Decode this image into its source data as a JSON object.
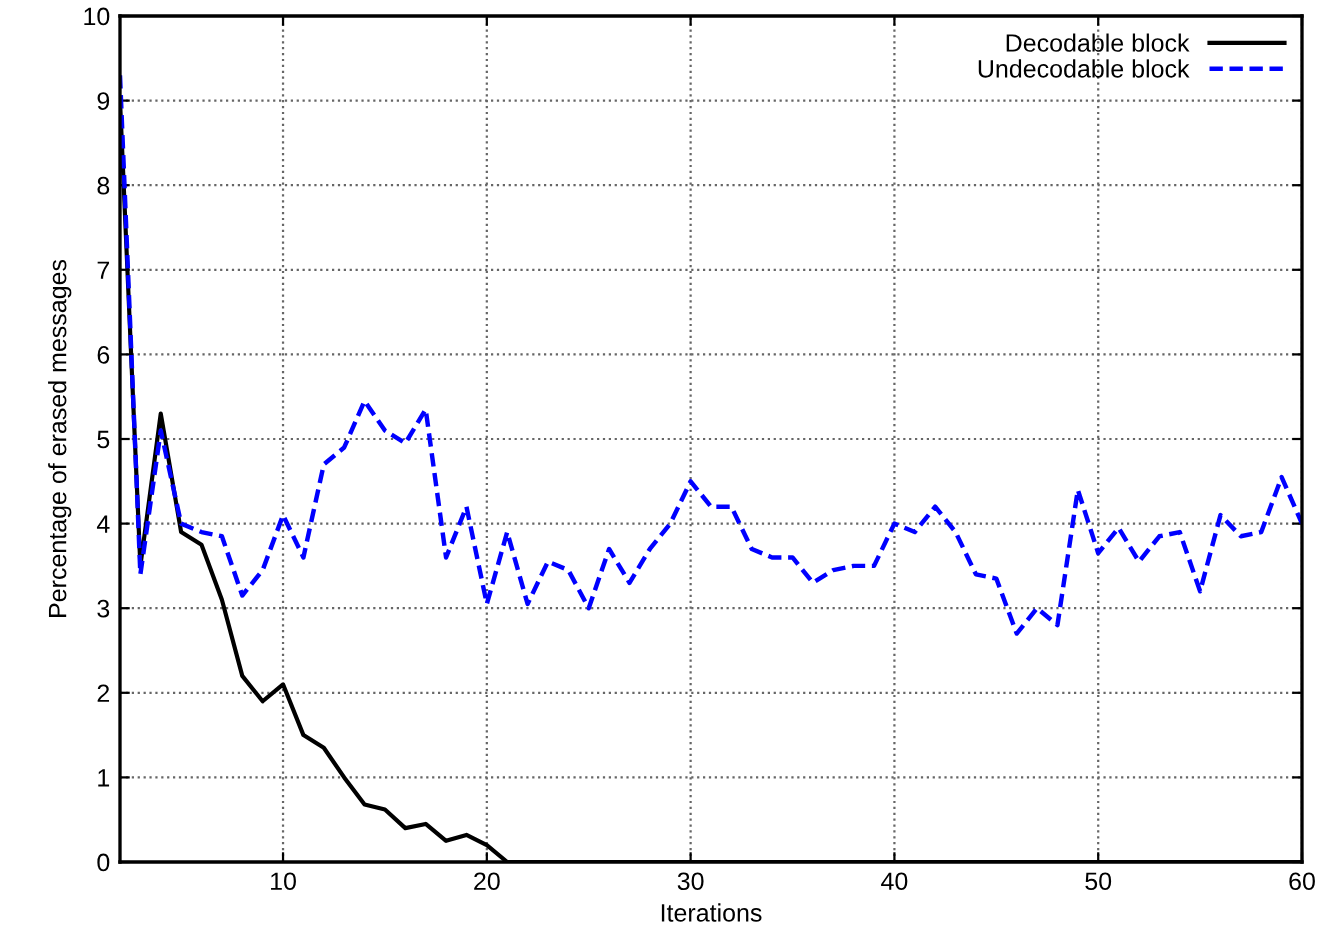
{
  "chart_data": {
    "type": "line",
    "xlabel": "Iterations",
    "ylabel": "Percentage of erased messages",
    "x": [
      2,
      3,
      4,
      5,
      6,
      7,
      8,
      9,
      10,
      11,
      12,
      13,
      14,
      15,
      16,
      17,
      18,
      19,
      20,
      21,
      22,
      23,
      24,
      25,
      26,
      27,
      28,
      29,
      30,
      31,
      32,
      33,
      34,
      35,
      36,
      37,
      38,
      39,
      40,
      41,
      42,
      43,
      44,
      45,
      46,
      47,
      48,
      49,
      50,
      51,
      52,
      53,
      54,
      55,
      56,
      57,
      58,
      59,
      60
    ],
    "series": [
      {
        "name": "Decodable block",
        "color": "#000000",
        "line_style": "solid",
        "values": [
          9.0,
          3.5,
          5.3,
          3.9,
          3.75,
          3.1,
          2.2,
          1.9,
          2.1,
          1.5,
          1.35,
          1.0,
          0.68,
          0.62,
          0.4,
          0.45,
          0.25,
          0.32,
          0.2,
          0,
          0,
          0,
          0,
          0,
          0,
          0,
          0,
          0,
          0,
          0,
          0,
          0,
          0,
          0,
          0,
          0,
          0,
          0,
          0,
          0,
          0,
          0,
          0,
          0,
          0,
          0,
          0,
          0,
          0,
          0,
          0,
          0,
          0,
          0,
          0,
          0,
          0,
          0,
          0
        ]
      },
      {
        "name": "Undecodable block",
        "color": "#0000ff",
        "line_style": "dashed",
        "values": [
          9.3,
          3.4,
          5.1,
          4.0,
          3.9,
          3.85,
          3.15,
          3.45,
          4.1,
          3.6,
          4.7,
          4.9,
          5.45,
          5.1,
          4.95,
          5.35,
          3.6,
          4.2,
          3.05,
          3.9,
          3.05,
          3.55,
          3.45,
          3.0,
          3.7,
          3.3,
          3.7,
          4.0,
          4.5,
          4.2,
          4.2,
          3.7,
          3.6,
          3.6,
          3.3,
          3.45,
          3.5,
          3.5,
          4.0,
          3.9,
          4.2,
          3.9,
          3.4,
          3.35,
          2.7,
          3.0,
          2.8,
          4.4,
          3.65,
          3.95,
          3.55,
          3.85,
          3.9,
          3.2,
          4.1,
          3.85,
          3.9,
          4.55,
          4.0
        ]
      }
    ],
    "xlim": [
      2,
      60
    ],
    "ylim": [
      0,
      10
    ],
    "xticks": [
      10,
      20,
      30,
      40,
      50,
      60
    ],
    "yticks": [
      0,
      1,
      2,
      3,
      4,
      5,
      6,
      7,
      8,
      9,
      10
    ],
    "grid": true,
    "legend": "top right",
    "marker": "none"
  }
}
